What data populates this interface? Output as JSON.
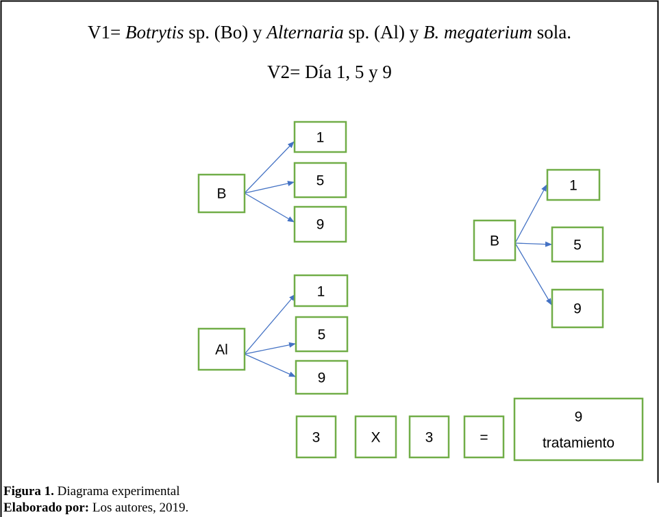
{
  "header": {
    "v1": [
      "V1= ",
      "Botrytis",
      " sp. (Bo) y ",
      "Alternaria",
      " sp. (Al) y ",
      "B. megaterium",
      " sola."
    ],
    "v2": "V2= Día 1, 5 y 9"
  },
  "groups": [
    {
      "label": "B",
      "children": [
        "1",
        "5",
        "9"
      ]
    },
    {
      "label": "Al",
      "children": [
        "1",
        "5",
        "9"
      ]
    },
    {
      "label": "B",
      "children": [
        "1",
        "5",
        "9"
      ]
    }
  ],
  "equation": {
    "left": "3",
    "operator": "X",
    "right": "3",
    "equals": "=",
    "result": [
      "9",
      "tratamiento"
    ]
  },
  "caption": {
    "figure_label": "Figura 1.",
    "figure_text": " Diagrama experimental",
    "credit_label": "Elaborado por:",
    "credit_text": " Los autores, 2019."
  }
}
